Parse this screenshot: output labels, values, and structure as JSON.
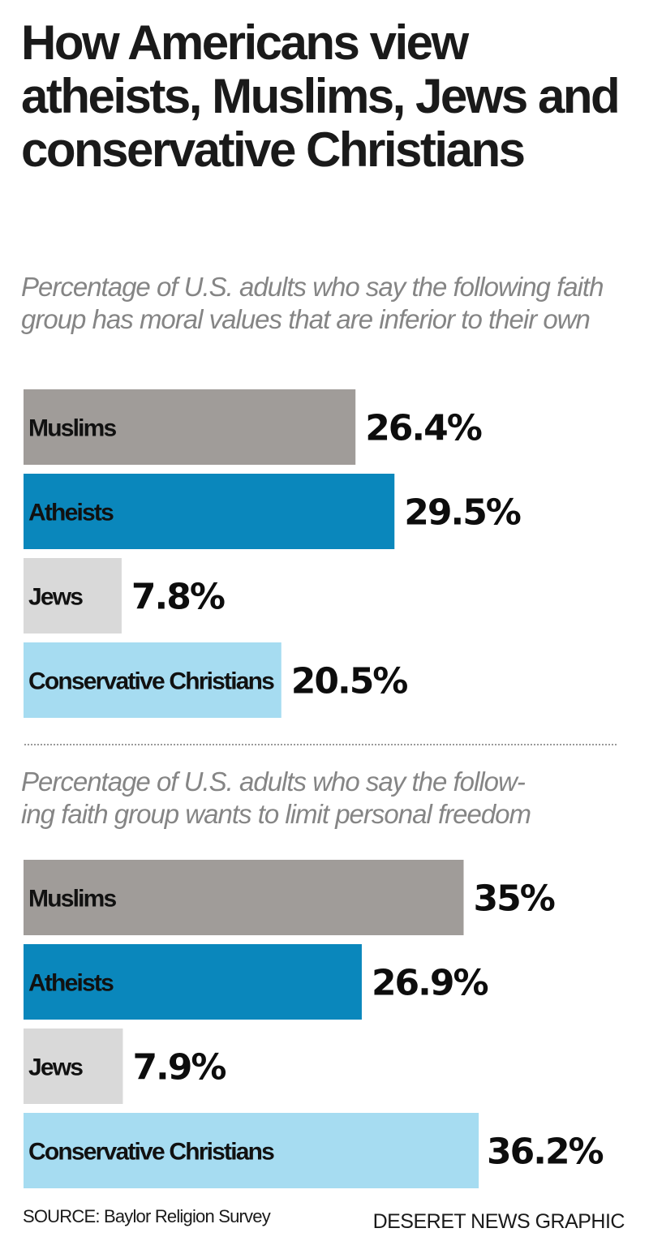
{
  "header": {
    "title": "How Americans view atheists, Muslims, Jews and conservative Christians"
  },
  "chart_data": [
    {
      "type": "bar",
      "orientation": "horizontal",
      "title": "Percentage of U.S. adults who say the following faith group has moral values that are inferior to their own",
      "categories": [
        "Muslims",
        "Atheists",
        "Jews",
        "Conservative Christians"
      ],
      "values": [
        26.4,
        29.5,
        7.8,
        20.5
      ],
      "value_labels": [
        "26.4%",
        "29.5%",
        "7.8%",
        "20.5%"
      ],
      "colors": [
        "#a09c99",
        "#0a87bc",
        "#d9d9d9",
        "#a6dcf1"
      ],
      "xlim": [
        0,
        40
      ],
      "grid": false
    },
    {
      "type": "bar",
      "orientation": "horizontal",
      "title": "Percentage of U.S. adults who say the following faith group wants to limit personal freedom",
      "title_lines": [
        "Percentage of U.S. adults who say the follow-",
        "ing faith group wants to limit personal freedom"
      ],
      "categories": [
        "Muslims",
        "Atheists",
        "Jews",
        "Conservative Christians"
      ],
      "values": [
        35,
        26.9,
        7.9,
        36.2
      ],
      "value_labels": [
        "35%",
        "26.9%",
        "7.9%",
        "36.2%"
      ],
      "colors": [
        "#a09c99",
        "#0a87bc",
        "#d9d9d9",
        "#a6dcf1"
      ],
      "xlim": [
        0,
        40
      ],
      "grid": false
    }
  ],
  "footer": {
    "source": "SOURCE: Baylor Religion Survey",
    "credit": "DESERET NEWS GRAPHIC"
  }
}
